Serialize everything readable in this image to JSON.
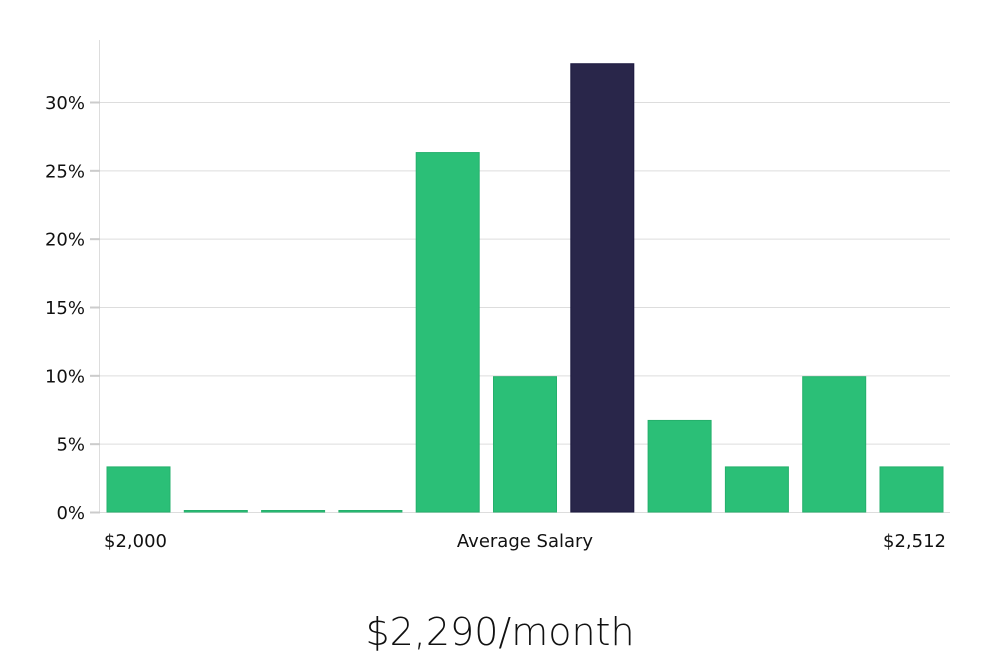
{
  "chart_data": {
    "type": "bar",
    "title": "",
    "xlabel": "Average Salary",
    "ylabel": "",
    "x_range_labels": {
      "min": "$2,000",
      "max": "$2,512"
    },
    "categories": [
      "bin1",
      "bin2",
      "bin3",
      "bin4",
      "bin5",
      "bin6",
      "bin7",
      "bin8",
      "bin9",
      "bin10",
      "bin11"
    ],
    "values": [
      3.3,
      0,
      0,
      0,
      26.3,
      9.9,
      32.8,
      6.7,
      3.3,
      9.9,
      3.3
    ],
    "highlight_index": 6,
    "yticks": [
      "0%",
      "5%",
      "10%",
      "15%",
      "20%",
      "25%",
      "30%"
    ],
    "ylim": [
      0,
      34.5
    ],
    "grid": true,
    "legend": null,
    "colors": {
      "bar": "#2bbf77",
      "highlight": "#29264a",
      "grid": "#dddddd"
    }
  },
  "footer": {
    "salary_label": "$2,290/month"
  }
}
